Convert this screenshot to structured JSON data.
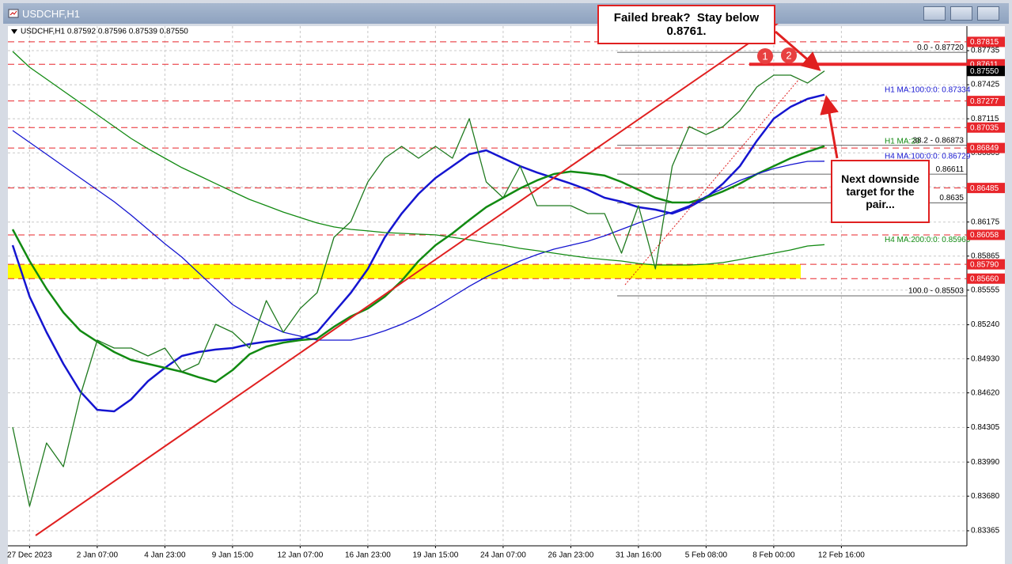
{
  "chart_data": {
    "type": "line",
    "title": "USDCHF,H1",
    "info": "USDCHF,H1  0.87592 0.87596 0.87539 0.87550",
    "categories": [
      null,
      "27 Dec 2023",
      null,
      null,
      null,
      "2 Jan 07:00",
      null,
      null,
      null,
      "4 Jan 23:00",
      null,
      null,
      null,
      "9 Jan 15:00",
      null,
      null,
      null,
      "12 Jan 07:00",
      null,
      null,
      null,
      "16 Jan 23:00",
      null,
      null,
      null,
      "19 Jan 15:00",
      null,
      null,
      null,
      "24 Jan 07:00",
      null,
      null,
      null,
      "26 Jan 23:00",
      null,
      null,
      null,
      "31 Jan 16:00",
      null,
      null,
      null,
      "5 Feb 08:00",
      null,
      null,
      null,
      "8 Feb 00:00",
      null,
      null,
      null,
      "12 Feb 16:00"
    ],
    "values": [
      0.84308,
      0.83588,
      0.84164,
      0.83948,
      0.84596,
      0.851,
      0.85028,
      0.85028,
      0.84956,
      0.85028,
      0.84812,
      0.84884,
      0.85244,
      0.85172,
      0.85028,
      0.8546,
      0.85172,
      0.85388,
      0.85532,
      0.86036,
      0.8618,
      0.8654,
      0.86756,
      0.86864,
      0.86756,
      0.86864,
      0.86756,
      0.87116,
      0.8654,
      0.86396,
      0.86684,
      0.86324,
      0.86324,
      0.86324,
      0.86252,
      0.86252,
      0.85892,
      0.86324,
      0.85748,
      0.86684,
      0.87044,
      0.86972,
      0.87044,
      0.87188,
      0.87404,
      0.87512,
      0.87512,
      0.8744,
      0.8755,
      null
    ],
    "color": "#1f7a1f",
    "series": [
      {
        "name": "H1 MA:100:0:0: 0.87334",
        "color": "#1515d0",
        "width": 2.5,
        "values": [
          0.85964,
          0.85496,
          0.85172,
          0.84884,
          0.84632,
          0.84466,
          0.84452,
          0.8456,
          0.84726,
          0.84848,
          0.84956,
          0.84992,
          0.85014,
          0.85028,
          0.85064,
          0.85086,
          0.851,
          0.85114,
          0.85172,
          0.85352,
          0.85532,
          0.85748,
          0.86036,
          0.86252,
          0.86432,
          0.86576,
          0.86684,
          0.86792,
          0.86828,
          0.86756,
          0.86684,
          0.86626,
          0.86576,
          0.86525,
          0.86468,
          0.86396,
          0.8636,
          0.8631,
          0.86288,
          0.86252,
          0.8631,
          0.86396,
          0.86525,
          0.86684,
          0.86914,
          0.87116,
          0.87224,
          0.87296,
          0.87334,
          null
        ]
      },
      {
        "name": "H1 MA:20",
        "color": "#128a12",
        "width": 2.5,
        "values": [
          0.86108,
          0.8582,
          0.85568,
          0.85352,
          0.85186,
          0.85086,
          0.84992,
          0.8492,
          0.84884,
          0.84848,
          0.84812,
          0.84762,
          0.84719,
          0.84827,
          0.84971,
          0.85042,
          0.85078,
          0.851,
          0.85114,
          0.85222,
          0.85316,
          0.85388,
          0.85496,
          0.8564,
          0.8582,
          0.85964,
          0.86072,
          0.86194,
          0.8631,
          0.86396,
          0.86482,
          0.86554,
          0.86612,
          0.86634,
          0.86619,
          0.86598,
          0.8654,
          0.86468,
          0.86396,
          0.86353,
          0.86353,
          0.86396,
          0.86454,
          0.86525,
          0.86612,
          0.86684,
          0.86756,
          0.86814,
          0.86866,
          null
        ]
      },
      {
        "name": "H4 MA:100:0:0: 0.86729",
        "color": "#1515d0",
        "width": 1.3,
        "values": [
          0.87008,
          0.869,
          0.86792,
          0.86684,
          0.86576,
          0.86468,
          0.8636,
          0.86238,
          0.86108,
          0.85978,
          0.85856,
          0.85712,
          0.85568,
          0.85424,
          0.8533,
          0.85244,
          0.85172,
          0.85136,
          0.851,
          0.851,
          0.851,
          0.85136,
          0.85186,
          0.85244,
          0.85316,
          0.85402,
          0.85496,
          0.8559,
          0.85676,
          0.85748,
          0.8582,
          0.85878,
          0.85928,
          0.85964,
          0.86,
          0.8605,
          0.86108,
          0.86166,
          0.86216,
          0.86266,
          0.86324,
          0.8641,
          0.86482,
          0.86554,
          0.86612,
          0.86662,
          0.86698,
          0.86727,
          0.86729,
          null
        ]
      },
      {
        "name": "H4 MA:200:0:0: 0.85969",
        "color": "#128a12",
        "width": 1.3,
        "values": [
          0.87728,
          0.87584,
          0.87476,
          0.87368,
          0.8726,
          0.87152,
          0.87044,
          0.86936,
          0.86842,
          0.86756,
          0.8667,
          0.86598,
          0.86525,
          0.86453,
          0.86381,
          0.86324,
          0.86266,
          0.86216,
          0.86166,
          0.8613,
          0.86108,
          0.86094,
          0.86079,
          0.86072,
          0.86065,
          0.86058,
          0.86036,
          0.86014,
          0.85986,
          0.85964,
          0.85935,
          0.85914,
          0.85892,
          0.8587,
          0.85849,
          0.85834,
          0.8582,
          0.85798,
          0.85784,
          0.85784,
          0.85784,
          0.85791,
          0.85806,
          0.85834,
          0.85863,
          0.85892,
          0.85921,
          0.85957,
          0.85969,
          null
        ]
      }
    ],
    "ylim": [
      0.83228,
      0.87944
    ],
    "yticks": [
      0.87735,
      0.87425,
      0.87115,
      0.86805,
      0.86495,
      0.86175,
      0.85865,
      0.85555,
      {
        "value": 0.8524,
        "label": "0.85240"
      },
      {
        "value": 0.8493,
        "label": "0.84930"
      },
      {
        "value": 0.8462,
        "label": "0.84620"
      },
      0.84305,
      {
        "value": 0.8399,
        "label": "0.83990"
      },
      {
        "value": 0.8368,
        "label": "0.83680"
      },
      0.83365
    ],
    "grid": true,
    "level_color": "#e8262b",
    "levels": [
      0.87815,
      0.87611,
      0.87277,
      0.87035,
      0.86849,
      0.86485,
      0.86058,
      {
        "value": 0.8579,
        "label": "0.85790"
      },
      {
        "value": 0.8566,
        "label": "0.85660"
      }
    ],
    "last_price": {
      "value": 0.8755,
      "label": "0.87550"
    },
    "fib_levels": [
      {
        "value": 0.8772,
        "label": "0.0 - 0.87720"
      },
      {
        "value": 0.86873,
        "label": "38.2 - 0.86873"
      },
      0.86611,
      0.8635,
      {
        "value": 0.85503,
        "label": "100.0 - 0.85503"
      }
    ],
    "annotations": [
      "Failed break?  Stay below 0.8761.",
      "Next downside target for the pair..."
    ],
    "markers": [
      "1",
      "2"
    ]
  }
}
